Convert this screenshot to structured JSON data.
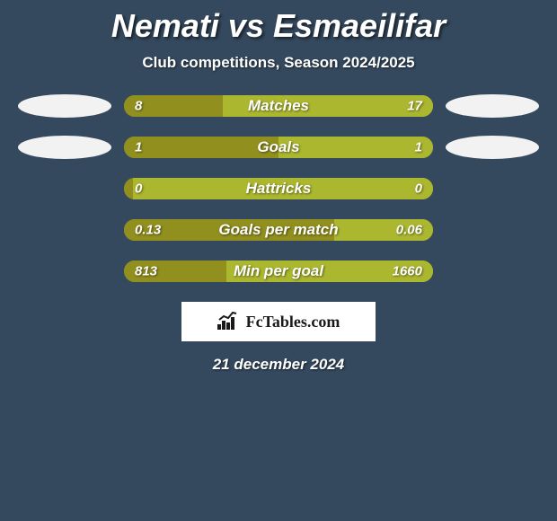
{
  "title": "Nemati vs Esmaeilifar",
  "subtitle": "Club competitions, Season 2024/2025",
  "date": "21 december 2024",
  "badge_text": "FcTables.com",
  "colors": {
    "background": "#34495e",
    "bar_base": "#abb72f",
    "left_seg": "#918f1e",
    "right_seg": "#abb72f",
    "oval_left": "#f2f2f2",
    "oval_right": "#f2f2f2",
    "text": "#ffffff",
    "badge_bg": "#ffffff",
    "badge_text": "#1a1a1a"
  },
  "rows": [
    {
      "metric": "Matches",
      "left_val": "8",
      "right_val": "17",
      "left_pct": 32,
      "oval_left": true,
      "oval_right": true
    },
    {
      "metric": "Goals",
      "left_val": "1",
      "right_val": "1",
      "left_pct": 50,
      "oval_left": true,
      "oval_right": true
    },
    {
      "metric": "Hattricks",
      "left_val": "0",
      "right_val": "0",
      "left_pct": 3,
      "oval_left": false,
      "oval_right": false
    },
    {
      "metric": "Goals per match",
      "left_val": "0.13",
      "right_val": "0.06",
      "left_pct": 68,
      "oval_left": false,
      "oval_right": false
    },
    {
      "metric": "Min per goal",
      "left_val": "813",
      "right_val": "1660",
      "left_pct": 33,
      "oval_left": false,
      "oval_right": false
    }
  ]
}
